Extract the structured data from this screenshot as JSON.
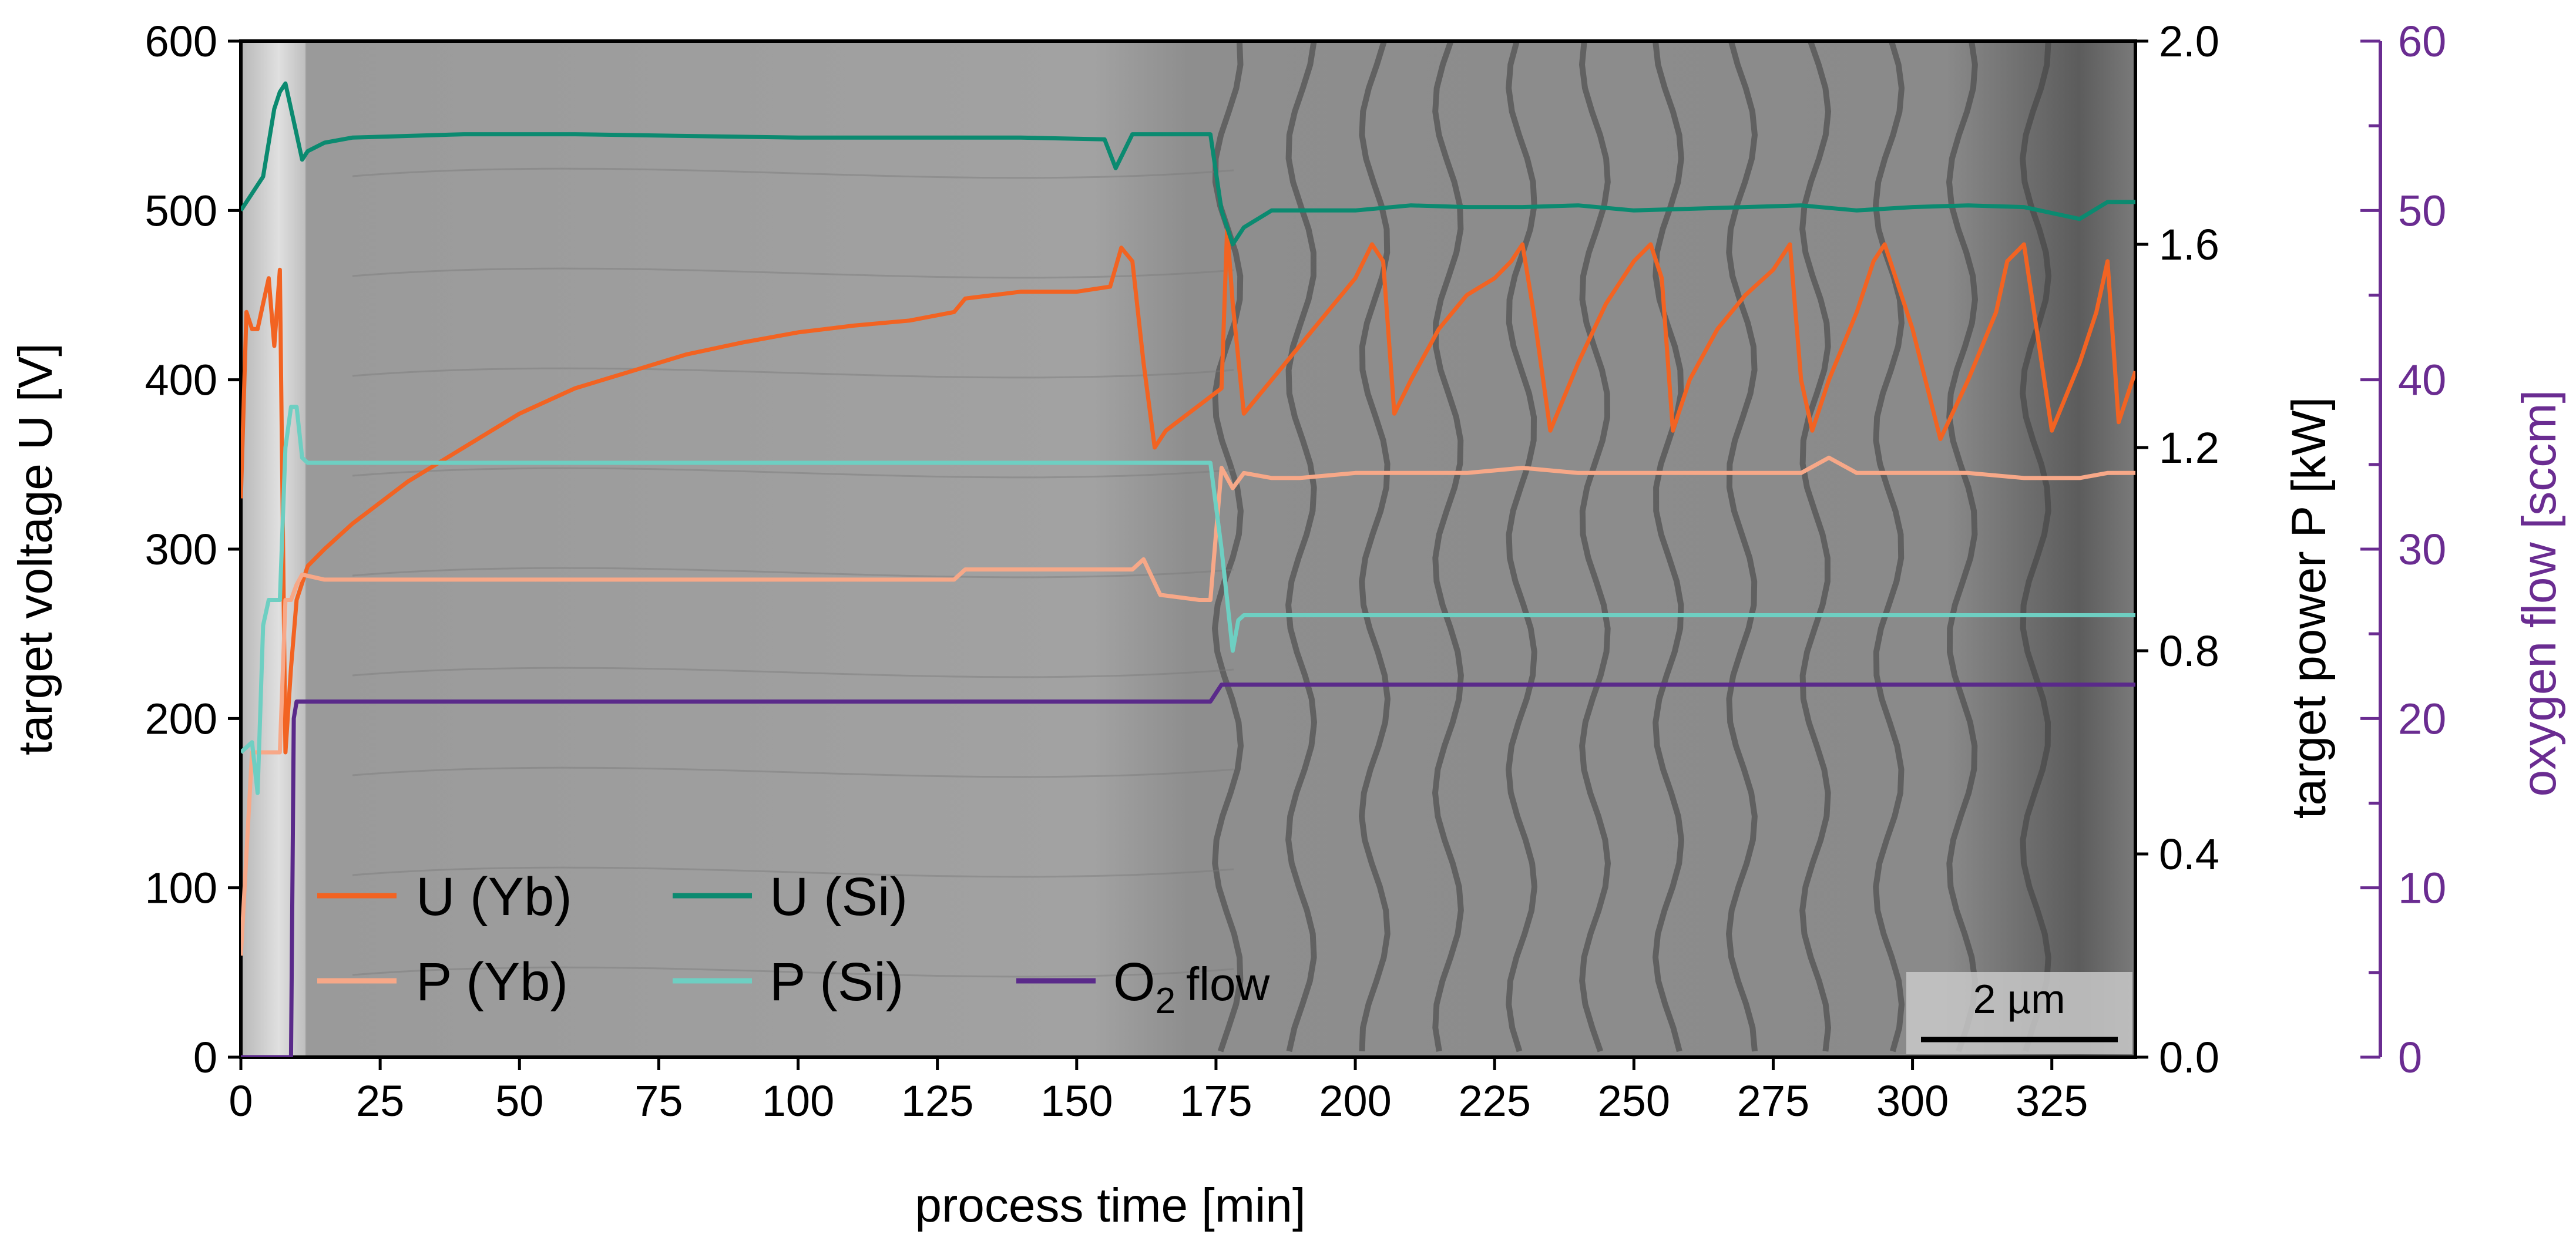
{
  "chart_data": {
    "type": "line",
    "background": "SEM cross-section micrograph",
    "xlabel": "process time [min]",
    "xlim": [
      0,
      340
    ],
    "xticks": [
      "0",
      "25",
      "50",
      "75",
      "100",
      "125",
      "150",
      "175",
      "200",
      "225",
      "250",
      "275",
      "300",
      "325"
    ],
    "axes": {
      "left": {
        "label": "target voltage U [V]",
        "lim": [
          0,
          600
        ],
        "ticks": [
          "0",
          "100",
          "200",
          "300",
          "400",
          "500",
          "600"
        ],
        "color": "#000000"
      },
      "right": {
        "label": "target power P [kW]",
        "lim": [
          0,
          2.0
        ],
        "ticks": [
          "0.0",
          "0.4",
          "0.8",
          "1.2",
          "1.6",
          "2.0"
        ],
        "color": "#000000"
      },
      "right2": {
        "label": "oxygen flow [sccm]",
        "lim": [
          0,
          60
        ],
        "ticks": [
          "0",
          "10",
          "20",
          "30",
          "40",
          "50",
          "60"
        ],
        "color": "#6A2C91"
      }
    },
    "grid": false,
    "legend_position": "bottom-left",
    "series": [
      {
        "name": "U (Yb)",
        "axis": "left",
        "color": "#F26322",
        "x": [
          0,
          1,
          2,
          3,
          4,
          5,
          6,
          7,
          8,
          9,
          10,
          12,
          15,
          20,
          30,
          40,
          50,
          60,
          70,
          80,
          90,
          100,
          110,
          120,
          128,
          130,
          140,
          150,
          156,
          158,
          160,
          162,
          164,
          166,
          168,
          170,
          172,
          174,
          176,
          177,
          178,
          180,
          185,
          190,
          195,
          200,
          203,
          205,
          207,
          210,
          215,
          220,
          225,
          228,
          230,
          232,
          235,
          240,
          245,
          250,
          253,
          255,
          257,
          260,
          265,
          270,
          275,
          278,
          280,
          282,
          285,
          290,
          293,
          295,
          300,
          305,
          310,
          315,
          317,
          320,
          325,
          330,
          333,
          335,
          337,
          340
        ],
        "values": [
          330,
          440,
          430,
          430,
          445,
          460,
          420,
          465,
          180,
          230,
          270,
          290,
          300,
          315,
          340,
          360,
          380,
          395,
          405,
          415,
          422,
          428,
          432,
          435,
          440,
          448,
          452,
          452,
          455,
          478,
          470,
          410,
          360,
          370,
          375,
          380,
          385,
          390,
          395,
          490,
          445,
          380,
          400,
          420,
          440,
          460,
          480,
          470,
          380,
          400,
          430,
          450,
          460,
          470,
          480,
          440,
          370,
          410,
          445,
          470,
          480,
          460,
          370,
          400,
          430,
          450,
          465,
          480,
          400,
          370,
          400,
          440,
          470,
          480,
          430,
          365,
          400,
          440,
          470,
          480,
          370,
          410,
          440,
          470,
          375,
          405
        ]
      },
      {
        "name": "U (Si)",
        "axis": "left",
        "color": "#0B8A70",
        "x": [
          0,
          2,
          4,
          6,
          7,
          8,
          9,
          10,
          11,
          12,
          15,
          20,
          40,
          60,
          80,
          100,
          120,
          140,
          155,
          157,
          160,
          165,
          170,
          174,
          176,
          178,
          180,
          185,
          190,
          200,
          210,
          220,
          230,
          240,
          250,
          260,
          270,
          280,
          290,
          300,
          310,
          320,
          330,
          335,
          340
        ],
        "values": [
          500,
          510,
          520,
          560,
          570,
          575,
          560,
          545,
          530,
          535,
          540,
          543,
          545,
          545,
          544,
          543,
          543,
          543,
          542,
          525,
          545,
          545,
          545,
          545,
          500,
          480,
          490,
          500,
          500,
          500,
          503,
          502,
          502,
          503,
          500,
          501,
          502,
          503,
          500,
          502,
          503,
          502,
          495,
          505,
          505
        ]
      },
      {
        "name": "P (Yb)",
        "axis": "right",
        "color": "#F7A888",
        "x": [
          0,
          2,
          4,
          6,
          7,
          8,
          9,
          10,
          11,
          15,
          50,
          100,
          128,
          130,
          160,
          162,
          165,
          172,
          174,
          176,
          178,
          180,
          185,
          190,
          200,
          210,
          220,
          230,
          240,
          250,
          260,
          270,
          280,
          285,
          290,
          300,
          310,
          320,
          330,
          335,
          340
        ],
        "values": [
          0.2,
          0.6,
          0.6,
          0.6,
          0.6,
          0.9,
          0.9,
          0.93,
          0.95,
          0.94,
          0.94,
          0.94,
          0.94,
          0.96,
          0.96,
          0.98,
          0.91,
          0.9,
          0.9,
          1.16,
          1.12,
          1.15,
          1.14,
          1.14,
          1.15,
          1.15,
          1.15,
          1.16,
          1.15,
          1.15,
          1.15,
          1.15,
          1.15,
          1.18,
          1.15,
          1.15,
          1.15,
          1.14,
          1.14,
          1.15,
          1.15
        ]
      },
      {
        "name": "P (Si)",
        "axis": "right",
        "color": "#6ECFC2",
        "x": [
          0,
          2,
          3,
          4,
          5,
          6,
          7,
          8,
          9,
          10,
          11,
          12,
          15,
          50,
          100,
          150,
          170,
          174,
          176,
          177,
          178,
          179,
          180,
          190,
          200,
          220,
          250,
          280,
          300,
          320,
          335,
          340
        ],
        "values": [
          0.6,
          0.62,
          0.52,
          0.85,
          0.9,
          0.9,
          0.9,
          1.2,
          1.28,
          1.28,
          1.18,
          1.17,
          1.17,
          1.17,
          1.17,
          1.17,
          1.17,
          1.17,
          1.0,
          0.9,
          0.8,
          0.86,
          0.87,
          0.87,
          0.87,
          0.87,
          0.87,
          0.87,
          0.87,
          0.87,
          0.87,
          0.87
        ]
      },
      {
        "name": "O2 flow",
        "axis": "right2",
        "color": "#5A2A8A",
        "x": [
          0,
          8,
          9,
          9.5,
          10,
          11,
          12,
          15,
          50,
          100,
          150,
          170,
          174,
          175,
          176,
          178,
          200,
          250,
          300,
          340
        ],
        "values": [
          0,
          0,
          0,
          20,
          21,
          21,
          21,
          21,
          21,
          21,
          21,
          21,
          21,
          21.5,
          22,
          22,
          22,
          22,
          22,
          22
        ]
      }
    ],
    "legend": {
      "u_yb": "U (Yb)",
      "u_si": "U (Si)",
      "p_yb": "P (Yb)",
      "p_si": "P (Si)",
      "o2_main": "O",
      "o2_sub": "2",
      "o2_tail": "flow"
    },
    "scalebar_label": "2 µm"
  }
}
